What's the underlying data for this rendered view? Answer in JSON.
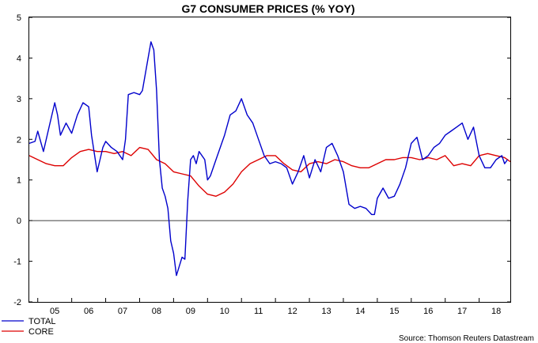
{
  "chart_data": {
    "type": "line",
    "title": "G7 CONSUMER PRICES (% YOY)",
    "xlabel": "",
    "ylabel": "",
    "source": "Source: Thomson Reuters Datastream",
    "ylim": [
      -2,
      5
    ],
    "yticks": [
      -2,
      -1,
      0,
      1,
      2,
      3,
      4,
      5
    ],
    "x_range": [
      2004.75,
      2018.917
    ],
    "xtick_labels": [
      "05",
      "06",
      "07",
      "08",
      "09",
      "10",
      "11",
      "12",
      "13",
      "14",
      "15",
      "16",
      "17",
      "18"
    ],
    "xtick_years": [
      2005,
      2006,
      2007,
      2008,
      2009,
      2010,
      2011,
      2012,
      2013,
      2014,
      2015,
      2016,
      2017,
      2018
    ],
    "zero_line": true,
    "legend_position": "bottom-left",
    "series": [
      {
        "name": "TOTAL",
        "color": "#0000cc",
        "x": [
          2004.75,
          2004.917,
          2005.0,
          2005.167,
          2005.333,
          2005.5,
          2005.583,
          2005.667,
          2005.833,
          2006.0,
          2006.167,
          2006.333,
          2006.5,
          2006.583,
          2006.75,
          2006.917,
          2007.0,
          2007.167,
          2007.333,
          2007.5,
          2007.583,
          2007.667,
          2007.833,
          2008.0,
          2008.083,
          2008.25,
          2008.333,
          2008.417,
          2008.5,
          2008.583,
          2008.667,
          2008.75,
          2008.833,
          2008.917,
          2009.0,
          2009.083,
          2009.25,
          2009.333,
          2009.417,
          2009.5,
          2009.583,
          2009.667,
          2009.75,
          2009.917,
          2010.0,
          2010.083,
          2010.25,
          2010.417,
          2010.5,
          2010.667,
          2010.833,
          2011.0,
          2011.167,
          2011.333,
          2011.5,
          2011.667,
          2011.833,
          2012.0,
          2012.167,
          2012.333,
          2012.5,
          2012.667,
          2012.833,
          2013.0,
          2013.167,
          2013.333,
          2013.5,
          2013.667,
          2013.833,
          2014.0,
          2014.167,
          2014.333,
          2014.5,
          2014.667,
          2014.833,
          2014.917,
          2015.0,
          2015.167,
          2015.333,
          2015.5,
          2015.667,
          2015.833,
          2016.0,
          2016.167,
          2016.333,
          2016.5,
          2016.667,
          2016.833,
          2017.0,
          2017.167,
          2017.333,
          2017.5,
          2017.667,
          2017.833,
          2018.0,
          2018.167,
          2018.333,
          2018.5,
          2018.667,
          2018.75,
          2018.833
        ],
        "values": [
          1.9,
          1.95,
          2.2,
          1.7,
          2.3,
          2.9,
          2.6,
          2.1,
          2.4,
          2.15,
          2.6,
          2.9,
          2.8,
          2.1,
          1.2,
          1.8,
          1.95,
          1.8,
          1.7,
          1.5,
          2.0,
          3.1,
          3.15,
          3.1,
          3.2,
          4.0,
          4.4,
          4.2,
          3.2,
          1.5,
          0.8,
          0.6,
          0.3,
          -0.5,
          -0.8,
          -1.35,
          -0.9,
          -0.95,
          0.5,
          1.5,
          1.6,
          1.4,
          1.7,
          1.5,
          1.0,
          1.1,
          1.5,
          1.9,
          2.1,
          2.6,
          2.7,
          3.0,
          2.6,
          2.4,
          2.0,
          1.6,
          1.4,
          1.45,
          1.4,
          1.3,
          0.9,
          1.2,
          1.6,
          1.05,
          1.5,
          1.2,
          1.8,
          1.9,
          1.6,
          1.2,
          0.4,
          0.3,
          0.35,
          0.3,
          0.15,
          0.15,
          0.55,
          0.8,
          0.55,
          0.6,
          0.9,
          1.3,
          1.9,
          2.05,
          1.5,
          1.6,
          1.8,
          1.9,
          2.1,
          2.2,
          2.3,
          2.4,
          2.0,
          2.3,
          1.6,
          1.3,
          1.3,
          1.5,
          1.6,
          1.4,
          1.5
        ]
      },
      {
        "name": "CORE",
        "color": "#dd0000",
        "x": [
          2004.75,
          2005.0,
          2005.25,
          2005.5,
          2005.75,
          2006.0,
          2006.25,
          2006.5,
          2006.75,
          2007.0,
          2007.25,
          2007.5,
          2007.75,
          2008.0,
          2008.25,
          2008.5,
          2008.75,
          2009.0,
          2009.25,
          2009.5,
          2009.75,
          2010.0,
          2010.25,
          2010.5,
          2010.75,
          2011.0,
          2011.25,
          2011.5,
          2011.75,
          2012.0,
          2012.25,
          2012.5,
          2012.75,
          2013.0,
          2013.25,
          2013.5,
          2013.75,
          2014.0,
          2014.25,
          2014.5,
          2014.75,
          2015.0,
          2015.25,
          2015.5,
          2015.75,
          2016.0,
          2016.25,
          2016.5,
          2016.75,
          2017.0,
          2017.25,
          2017.5,
          2017.75,
          2018.0,
          2018.25,
          2018.5,
          2018.75,
          2018.917
        ],
        "values": [
          1.6,
          1.5,
          1.4,
          1.35,
          1.35,
          1.55,
          1.7,
          1.75,
          1.7,
          1.7,
          1.65,
          1.7,
          1.6,
          1.8,
          1.75,
          1.5,
          1.4,
          1.2,
          1.15,
          1.1,
          0.85,
          0.65,
          0.6,
          0.7,
          0.9,
          1.2,
          1.4,
          1.5,
          1.6,
          1.6,
          1.4,
          1.25,
          1.2,
          1.4,
          1.45,
          1.4,
          1.5,
          1.45,
          1.35,
          1.3,
          1.3,
          1.4,
          1.5,
          1.5,
          1.55,
          1.55,
          1.5,
          1.55,
          1.5,
          1.6,
          1.35,
          1.4,
          1.35,
          1.6,
          1.65,
          1.6,
          1.55,
          1.45
        ]
      }
    ]
  }
}
